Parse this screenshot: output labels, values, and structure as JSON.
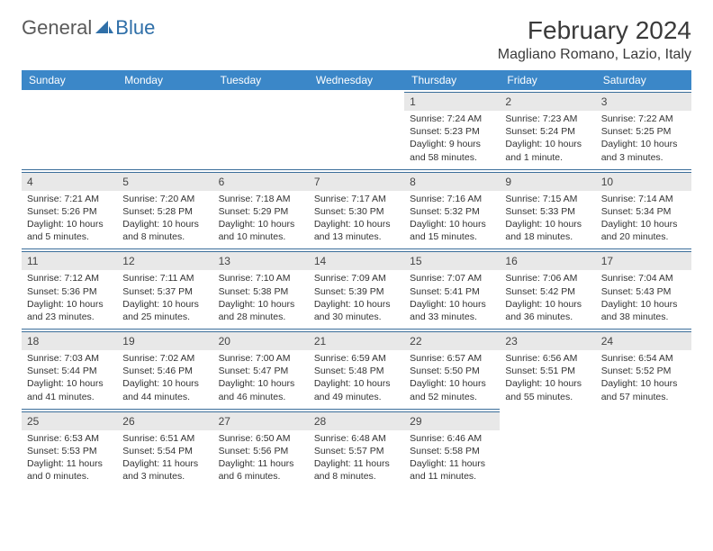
{
  "logo": {
    "text_a": "General",
    "text_b": "Blue"
  },
  "title": "February 2024",
  "location": "Magliano Romano, Lazio, Italy",
  "colors": {
    "header_bg": "#3b87c8",
    "header_text": "#ffffff",
    "daynum_bg": "#e8e8e8",
    "rule": "#3b6e9a",
    "text": "#333333",
    "logo_gray": "#5a5a5a",
    "logo_blue": "#2f6fa8"
  },
  "day_names": [
    "Sunday",
    "Monday",
    "Tuesday",
    "Wednesday",
    "Thursday",
    "Friday",
    "Saturday"
  ],
  "weeks": [
    [
      null,
      null,
      null,
      null,
      {
        "n": "1",
        "sr": "7:24 AM",
        "ss": "5:23 PM",
        "dl": "9 hours and 58 minutes."
      },
      {
        "n": "2",
        "sr": "7:23 AM",
        "ss": "5:24 PM",
        "dl": "10 hours and 1 minute."
      },
      {
        "n": "3",
        "sr": "7:22 AM",
        "ss": "5:25 PM",
        "dl": "10 hours and 3 minutes."
      }
    ],
    [
      {
        "n": "4",
        "sr": "7:21 AM",
        "ss": "5:26 PM",
        "dl": "10 hours and 5 minutes."
      },
      {
        "n": "5",
        "sr": "7:20 AM",
        "ss": "5:28 PM",
        "dl": "10 hours and 8 minutes."
      },
      {
        "n": "6",
        "sr": "7:18 AM",
        "ss": "5:29 PM",
        "dl": "10 hours and 10 minutes."
      },
      {
        "n": "7",
        "sr": "7:17 AM",
        "ss": "5:30 PM",
        "dl": "10 hours and 13 minutes."
      },
      {
        "n": "8",
        "sr": "7:16 AM",
        "ss": "5:32 PM",
        "dl": "10 hours and 15 minutes."
      },
      {
        "n": "9",
        "sr": "7:15 AM",
        "ss": "5:33 PM",
        "dl": "10 hours and 18 minutes."
      },
      {
        "n": "10",
        "sr": "7:14 AM",
        "ss": "5:34 PM",
        "dl": "10 hours and 20 minutes."
      }
    ],
    [
      {
        "n": "11",
        "sr": "7:12 AM",
        "ss": "5:36 PM",
        "dl": "10 hours and 23 minutes."
      },
      {
        "n": "12",
        "sr": "7:11 AM",
        "ss": "5:37 PM",
        "dl": "10 hours and 25 minutes."
      },
      {
        "n": "13",
        "sr": "7:10 AM",
        "ss": "5:38 PM",
        "dl": "10 hours and 28 minutes."
      },
      {
        "n": "14",
        "sr": "7:09 AM",
        "ss": "5:39 PM",
        "dl": "10 hours and 30 minutes."
      },
      {
        "n": "15",
        "sr": "7:07 AM",
        "ss": "5:41 PM",
        "dl": "10 hours and 33 minutes."
      },
      {
        "n": "16",
        "sr": "7:06 AM",
        "ss": "5:42 PM",
        "dl": "10 hours and 36 minutes."
      },
      {
        "n": "17",
        "sr": "7:04 AM",
        "ss": "5:43 PM",
        "dl": "10 hours and 38 minutes."
      }
    ],
    [
      {
        "n": "18",
        "sr": "7:03 AM",
        "ss": "5:44 PM",
        "dl": "10 hours and 41 minutes."
      },
      {
        "n": "19",
        "sr": "7:02 AM",
        "ss": "5:46 PM",
        "dl": "10 hours and 44 minutes."
      },
      {
        "n": "20",
        "sr": "7:00 AM",
        "ss": "5:47 PM",
        "dl": "10 hours and 46 minutes."
      },
      {
        "n": "21",
        "sr": "6:59 AM",
        "ss": "5:48 PM",
        "dl": "10 hours and 49 minutes."
      },
      {
        "n": "22",
        "sr": "6:57 AM",
        "ss": "5:50 PM",
        "dl": "10 hours and 52 minutes."
      },
      {
        "n": "23",
        "sr": "6:56 AM",
        "ss": "5:51 PM",
        "dl": "10 hours and 55 minutes."
      },
      {
        "n": "24",
        "sr": "6:54 AM",
        "ss": "5:52 PM",
        "dl": "10 hours and 57 minutes."
      }
    ],
    [
      {
        "n": "25",
        "sr": "6:53 AM",
        "ss": "5:53 PM",
        "dl": "11 hours and 0 minutes."
      },
      {
        "n": "26",
        "sr": "6:51 AM",
        "ss": "5:54 PM",
        "dl": "11 hours and 3 minutes."
      },
      {
        "n": "27",
        "sr": "6:50 AM",
        "ss": "5:56 PM",
        "dl": "11 hours and 6 minutes."
      },
      {
        "n": "28",
        "sr": "6:48 AM",
        "ss": "5:57 PM",
        "dl": "11 hours and 8 minutes."
      },
      {
        "n": "29",
        "sr": "6:46 AM",
        "ss": "5:58 PM",
        "dl": "11 hours and 11 minutes."
      },
      null,
      null
    ]
  ],
  "labels": {
    "sunrise": "Sunrise: ",
    "sunset": "Sunset: ",
    "daylight": "Daylight: "
  }
}
